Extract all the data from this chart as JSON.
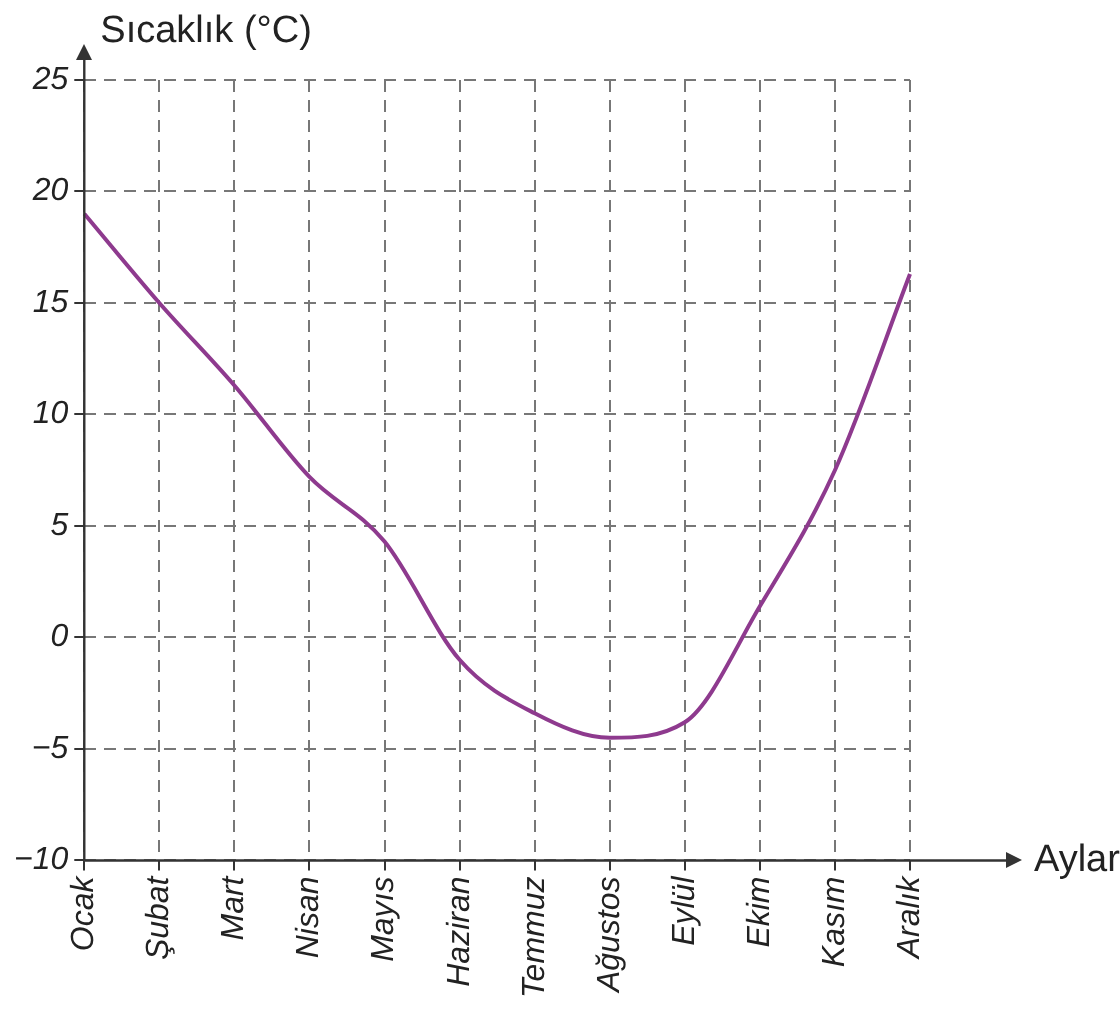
{
  "chart_data": {
    "type": "line",
    "xlabel": "Aylar",
    "ylabel": "Sıcaklık (°C)",
    "categories": [
      "Ocak",
      "Şubat",
      "Mart",
      "Nisan",
      "Mayıs",
      "Haziran",
      "Temmuz",
      "Ağustos",
      "Eylül",
      "Ekim",
      "Kasım",
      "Aralık"
    ],
    "series": [
      {
        "color": "#8e3a8e",
        "values": [
          19,
          15,
          11.3,
          7.2,
          4.3,
          -1,
          -3.4,
          -4.5,
          -3.8,
          1.4,
          7.5,
          16.3
        ]
      }
    ],
    "ylim": [
      -10,
      25
    ],
    "yticks": [
      {
        "value": -10,
        "label": "−10"
      },
      {
        "value": -5,
        "label": "−5"
      },
      0,
      5,
      10,
      15,
      20,
      25
    ],
    "grid": true,
    "line_style": "solid",
    "marker": "none",
    "legend": false
  }
}
